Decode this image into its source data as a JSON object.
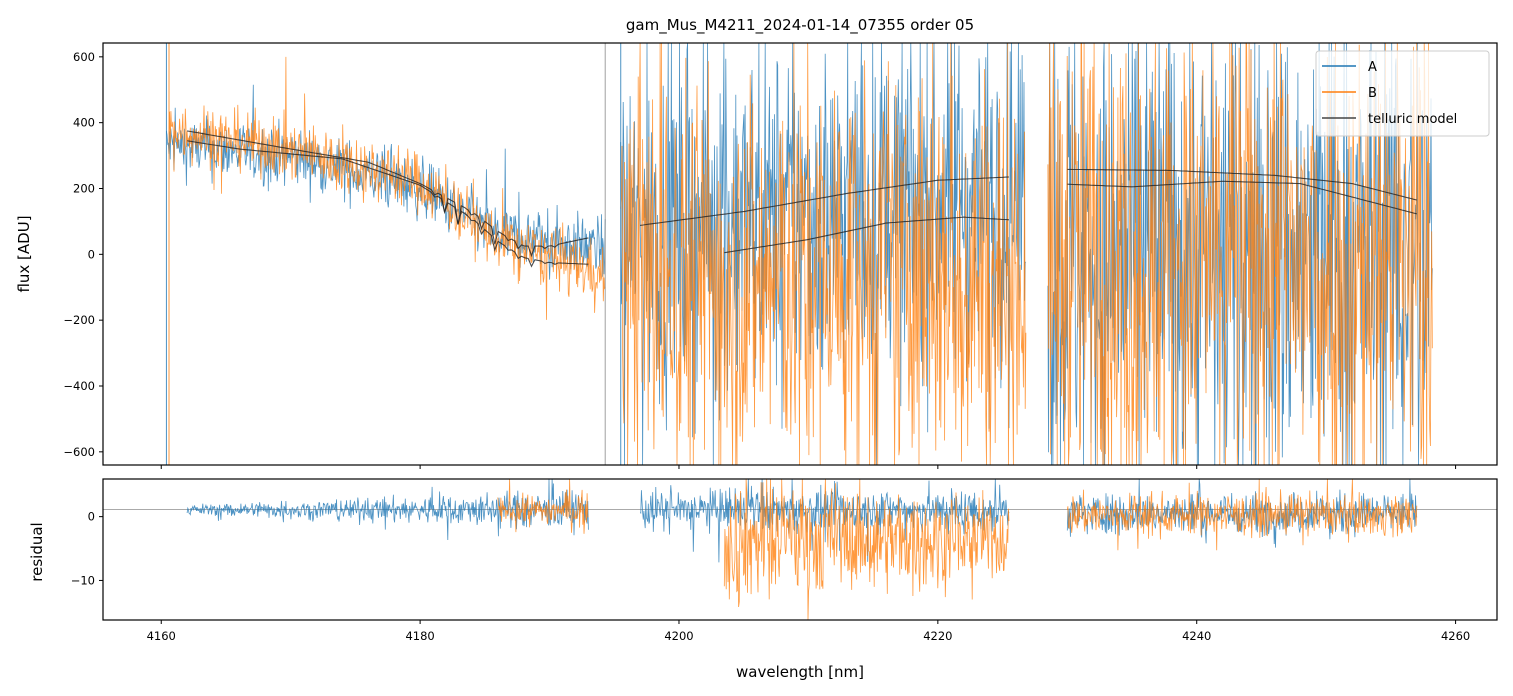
{
  "chart_data": [
    {
      "type": "line",
      "title": "gam_Mus_M4211_2024-01-14_07355  order 05",
      "xlabel": "",
      "ylabel": "flux [ADU]",
      "xlim": [
        4155.5,
        4263.2
      ],
      "ylim": [
        -640,
        642
      ],
      "xticks": [
        4160,
        4180,
        4200,
        4220,
        4240,
        4260
      ],
      "yticks": [
        600,
        400,
        200,
        0,
        -200,
        -400,
        -600
      ],
      "ytick_labels": [
        "600",
        "400",
        "200",
        "0",
        "−200",
        "−400",
        "−600"
      ],
      "legend": {
        "placement": "top-right",
        "entries": [
          "A",
          "B",
          "telluric model"
        ]
      },
      "colors": {
        "A": "#1f77b4",
        "B": "#ff7f0e",
        "model": "#222222"
      },
      "series": [
        {
          "name": "A",
          "segments": [
            {
              "x": [
                4160.4,
                4194.3
              ],
              "mean": [
                [
                  4160.4,
                  330
                ],
                [
                  4170,
                  300
                ],
                [
                  4180,
                  200
                ],
                [
                  4186,
                  60
                ],
                [
                  4194,
                  20
                ]
              ],
              "noise": 45
            },
            {
              "x": [
                4195.5,
                4226.8
              ],
              "mean": [
                [
                  4195.5,
                  60
                ],
                [
                  4226.8,
                  200
                ]
              ],
              "noise": 260
            },
            {
              "x": [
                4228.5,
                4258.2
              ],
              "mean": [
                [
                  4228.5,
                  0
                ],
                [
                  4258.2,
                  0
                ]
              ],
              "noise": 380
            }
          ]
        },
        {
          "name": "B",
          "segments": [
            {
              "x": [
                4160.6,
                4194.3
              ],
              "mean": [
                [
                  4160.6,
                  380
                ],
                [
                  4170,
                  320
                ],
                [
                  4180,
                  220
                ],
                [
                  4186,
                  40
                ],
                [
                  4194,
                  -60
                ]
              ],
              "noise": 45
            },
            {
              "x": [
                4195.5,
                4226.8
              ],
              "mean": [
                [
                  4195.5,
                  -80
                ],
                [
                  4226.8,
                  -60
                ]
              ],
              "noise": 320
            },
            {
              "x": [
                4228.5,
                4258.2
              ],
              "mean": [
                [
                  4228.5,
                  -20
                ],
                [
                  4258.2,
                  -20
                ]
              ],
              "noise": 380
            }
          ]
        },
        {
          "name": "telluric model",
          "curves": [
            [
              [
                4162,
                375
              ],
              [
                4170,
                320
              ],
              [
                4176,
                280
              ],
              [
                4180,
                215
              ],
              [
                4184,
                130
              ],
              [
                4186,
                70
              ],
              [
                4188,
                25
              ],
              [
                4190,
                25
              ],
              [
                4193,
                50
              ]
            ],
            [
              [
                4162,
                345
              ],
              [
                4166,
                320
              ],
              [
                4174,
                290
              ],
              [
                4180,
                210
              ],
              [
                4184,
                110
              ],
              [
                4186,
                40
              ],
              [
                4188,
                -10
              ],
              [
                4190,
                -25
              ],
              [
                4193,
                -30
              ]
            ],
            [
              [
                4197,
                88
              ],
              [
                4205,
                130
              ],
              [
                4213,
                185
              ],
              [
                4220,
                225
              ],
              [
                4225.5,
                235
              ]
            ],
            [
              [
                4203.5,
                5
              ],
              [
                4210,
                45
              ],
              [
                4216,
                95
              ],
              [
                4222,
                113
              ],
              [
                4225.5,
                105
              ]
            ],
            [
              [
                4230,
                258
              ],
              [
                4238,
                255
              ],
              [
                4246,
                240
              ],
              [
                4252,
                215
              ],
              [
                4257,
                165
              ]
            ],
            [
              [
                4230,
                213
              ],
              [
                4235,
                205
              ],
              [
                4242,
                222
              ],
              [
                4248,
                215
              ],
              [
                4257,
                123
              ]
            ]
          ]
        }
      ]
    },
    {
      "type": "line",
      "xlabel": "wavelength [nm]",
      "ylabel": "residual",
      "xlim": [
        4155.5,
        4263.2
      ],
      "ylim": [
        -16.2,
        5.9
      ],
      "xticks": [
        4160,
        4180,
        4200,
        4220,
        4240,
        4260
      ],
      "xtick_labels": [
        "4160",
        "4180",
        "4200",
        "4220",
        "4240",
        "4260"
      ],
      "yticks": [
        0,
        -10
      ],
      "ytick_labels": [
        "0",
        "−10"
      ],
      "reference_line": 1.1,
      "series": [
        {
          "name": "A",
          "segments": [
            {
              "x": [
                4162,
                4193
              ],
              "mean": 1.1,
              "noise": [
                0.4,
                1.6
              ]
            },
            {
              "x": [
                4197,
                4225.5
              ],
              "mean": 1.0,
              "noise": [
                1.6,
                1.8
              ]
            },
            {
              "x": [
                4230,
                4257
              ],
              "mean": 0.5,
              "noise": [
                1.6,
                1.6
              ]
            }
          ]
        },
        {
          "name": "B",
          "segments": [
            {
              "x": [
                4186,
                4193
              ],
              "mean": 1.0,
              "noise": [
                1.0,
                1.4
              ]
            },
            {
              "x": [
                4203.5,
                4225.5
              ],
              "mean": -3.5,
              "noise": [
                5,
                3
              ]
            },
            {
              "x": [
                4230,
                4257
              ],
              "mean": 0.3,
              "noise": [
                1.6,
                1.6
              ]
            }
          ]
        }
      ]
    }
  ]
}
